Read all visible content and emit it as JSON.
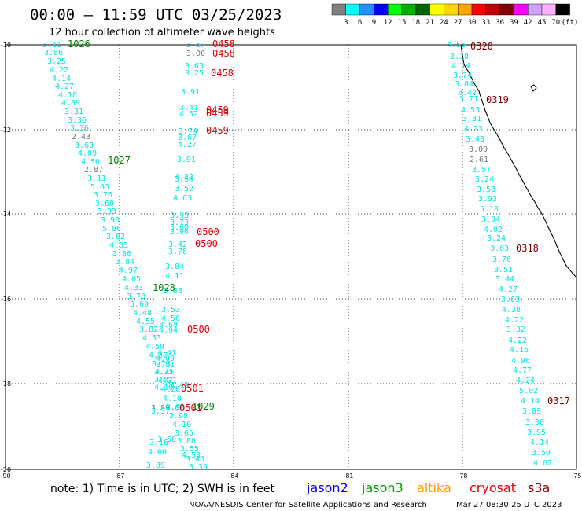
{
  "title": "00:00 – 11:59 UTC 03/25/2023",
  "subtitle": "12 hour collection of altimeter wave heights",
  "colors": {
    "cyan": "#00e5e5",
    "gray": "#777777",
    "green": "#007f00",
    "red": "#e00000",
    "darkred": "#7f0000",
    "jason2": "#0000ff",
    "jason3": "#00a000",
    "altika": "#ff9a00",
    "cryosat": "#e00000",
    "s3a": "#8b0000"
  },
  "legend": {
    "swatches": [
      "#808080",
      "#00ffff",
      "#1e90ff",
      "#0000ff",
      "#00ff00",
      "#00b000",
      "#006400",
      "#ffff00",
      "#ffd700",
      "#ffa500",
      "#ff0000",
      "#c00000",
      "#800000",
      "#ff00ff",
      "#d0a0ff",
      "#ffb0ff",
      "#000000"
    ],
    "labels": [
      "3",
      "6",
      "9",
      "12",
      "15",
      "18",
      "21",
      "24",
      "27",
      "30",
      "33",
      "36",
      "39",
      "42",
      "45",
      "70",
      "(ft)"
    ]
  },
  "axes": {
    "x_ticks": [
      "-90",
      "-87",
      "-84",
      "-81",
      "-78",
      "-75"
    ],
    "y_ticks": [
      "-10",
      "-12",
      "-14",
      "-16",
      "-18",
      "-20"
    ]
  },
  "note": "note:  1) Time is in UTC;  2) SWH is in feet",
  "satellites": [
    {
      "name": "jason2",
      "color": "#0000ff"
    },
    {
      "name": "jason3",
      "color": "#00a000"
    },
    {
      "name": "altika",
      "color": "#ff9a00"
    },
    {
      "name": "cryosat",
      "color": "#e00000"
    },
    {
      "name": "s3a",
      "color": "#8b0000"
    }
  ],
  "credit": "NOAA/NESDIS Center for Satellite Applications and Research",
  "timestamp": "Mar 27 08:30:25 UTC 2023",
  "track1": [
    "3.11",
    "3.86",
    "3.25",
    "4.22",
    "4.14",
    "4.27",
    "4.18",
    "4.89",
    "3.31",
    "3.36",
    "3.36",
    "2.43",
    "3.63",
    "4.09",
    "4.50",
    "2.87",
    "3.11",
    "5.03",
    "3.76",
    "3.60",
    "3.33",
    "3.93",
    "5.86",
    "3.82",
    "4.33",
    "3.86",
    "3.84",
    "4.97",
    "4.05",
    "4.33",
    "3.78",
    "5.69",
    "4.48",
    "4.55",
    "3.82",
    "4.53",
    "4.50",
    "4.37",
    "3.73",
    "4.25",
    "4.21",
    "4.20",
    "4.10",
    "3.90",
    "3.98",
    "4.10",
    "3.65",
    "3.88",
    "3.55",
    "4.53",
    "3.48",
    "3.39"
  ],
  "track2": [
    "3.57",
    "3.00",
    "3.63",
    "3.25",
    "3.91",
    "3.41",
    "4.52",
    "3.74",
    "3.67",
    "4.27",
    "3.91",
    "4.32",
    "3.94",
    "3.52",
    "4.63",
    "3.93",
    "3.73",
    "3.60",
    "3.96",
    "3.42",
    "3.78",
    "3.84",
    "4.11",
    "3.88",
    "3.53",
    "4.56",
    "3.69",
    "4.94",
    "4.41",
    "4.09",
    "3.81",
    "3.73",
    "3.87",
    "4.10",
    "3.89",
    "3.37",
    "3.16",
    "4.00",
    "3.89",
    "3.42",
    "3.67",
    "3.50"
  ],
  "track3": [
    "4.56",
    "3.18",
    "4.14",
    "3.74",
    "3.84",
    "3.42",
    "3.71",
    "4.53",
    "3.31",
    "4.23",
    "3.43",
    "3.00",
    "2.61",
    "3.57",
    "3.24",
    "3.58",
    "3.93",
    "5.18",
    "3.94",
    "4.02",
    "3.24",
    "3.63",
    "3.76",
    "3.51",
    "3.44",
    "4.27",
    "3.63",
    "4.38",
    "4.22",
    "3.32",
    "4.22",
    "4.16",
    "4.96",
    "4.77",
    "4.24",
    "5.02",
    "4.14",
    "3.89",
    "3.30",
    "3.95",
    "4.14",
    "3.50",
    "4.02"
  ],
  "times": [
    "1026",
    "0458",
    "0458",
    "0458",
    "0459",
    "0459",
    "0459",
    "1027",
    "0500",
    "0500",
    "1028",
    "0500",
    "0501",
    "0501",
    "1029",
    "0320",
    "0319",
    "0318",
    "0317"
  ]
}
